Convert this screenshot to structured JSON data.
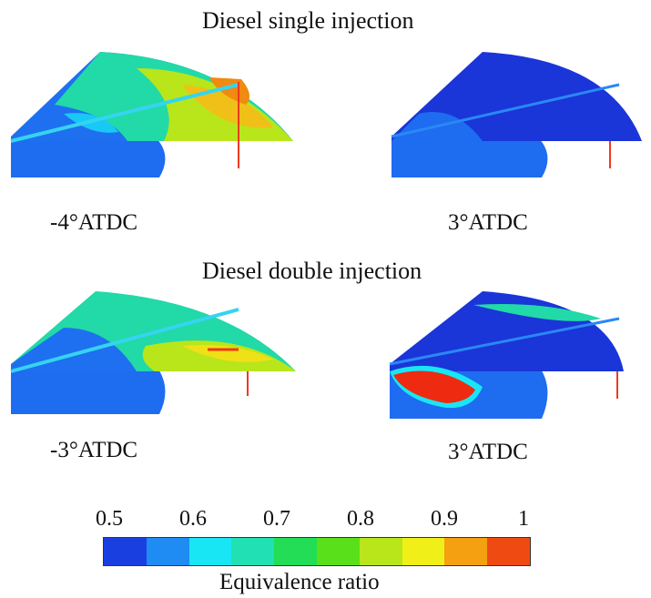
{
  "figure": {
    "section_single_title": "Diesel single injection",
    "section_double_title": "Diesel double injection",
    "panels": [
      {
        "id": "single-left",
        "label": "-4°ATDC"
      },
      {
        "id": "single-right",
        "label": "3°ATDC"
      },
      {
        "id": "double-left",
        "label": "-3°ATDC"
      },
      {
        "id": "double-right",
        "label": "3°ATDC"
      }
    ],
    "colorbar": {
      "ticks": [
        "0.5",
        "0.6",
        "0.7",
        "0.8",
        "0.9",
        "1"
      ],
      "label": "Equivalence ratio",
      "colors": [
        "#1a3fe0",
        "#1e8cf2",
        "#19e6f5",
        "#20e0b4",
        "#22dd55",
        "#5ae01a",
        "#b8e61a",
        "#f0f018",
        "#f5a010",
        "#ee4a12"
      ]
    }
  }
}
